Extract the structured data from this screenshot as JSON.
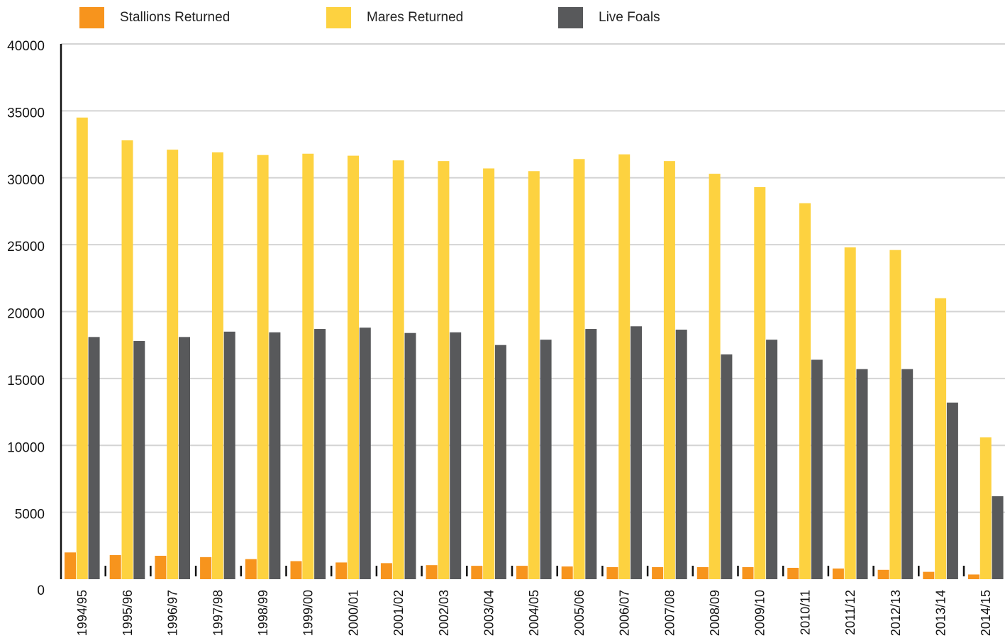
{
  "chart_data": {
    "type": "bar",
    "title": "",
    "xlabel": "",
    "ylabel": "",
    "ylim": [
      0,
      40000
    ],
    "yticks": [
      0,
      5000,
      10000,
      15000,
      20000,
      25000,
      30000,
      35000,
      40000
    ],
    "grid": true,
    "legend_position": "top",
    "categories": [
      "1994/95",
      "1995/96",
      "1996/97",
      "1997/98",
      "1998/99",
      "1999/00",
      "2000/01",
      "2001/02",
      "2002/03",
      "2003/04",
      "2004/05",
      "2005/06",
      "2006/07",
      "2007/08",
      "2008/09",
      "2009/10",
      "2010/11",
      "2011/12",
      "2012/13",
      "2013/14",
      "2014/15"
    ],
    "series": [
      {
        "name": "Stallions Returned",
        "color": "#f7941d",
        "values": [
          2000,
          1800,
          1750,
          1650,
          1500,
          1350,
          1250,
          1200,
          1050,
          1000,
          1000,
          950,
          900,
          900,
          900,
          900,
          850,
          800,
          700,
          550,
          350
        ]
      },
      {
        "name": "Mares Returned",
        "color": "#fdd240",
        "values": [
          34500,
          32800,
          32100,
          31900,
          31700,
          31800,
          31650,
          31300,
          31250,
          30700,
          30500,
          31400,
          31750,
          31250,
          30300,
          29300,
          28100,
          24800,
          24600,
          21000,
          10600
        ]
      },
      {
        "name": "Live Foals",
        "color": "#58595b",
        "values": [
          18100,
          17800,
          18100,
          18500,
          18450,
          18700,
          18800,
          18400,
          18450,
          17500,
          17900,
          18700,
          18900,
          18650,
          16800,
          17900,
          16400,
          15700,
          15700,
          13200,
          6200
        ]
      }
    ]
  }
}
